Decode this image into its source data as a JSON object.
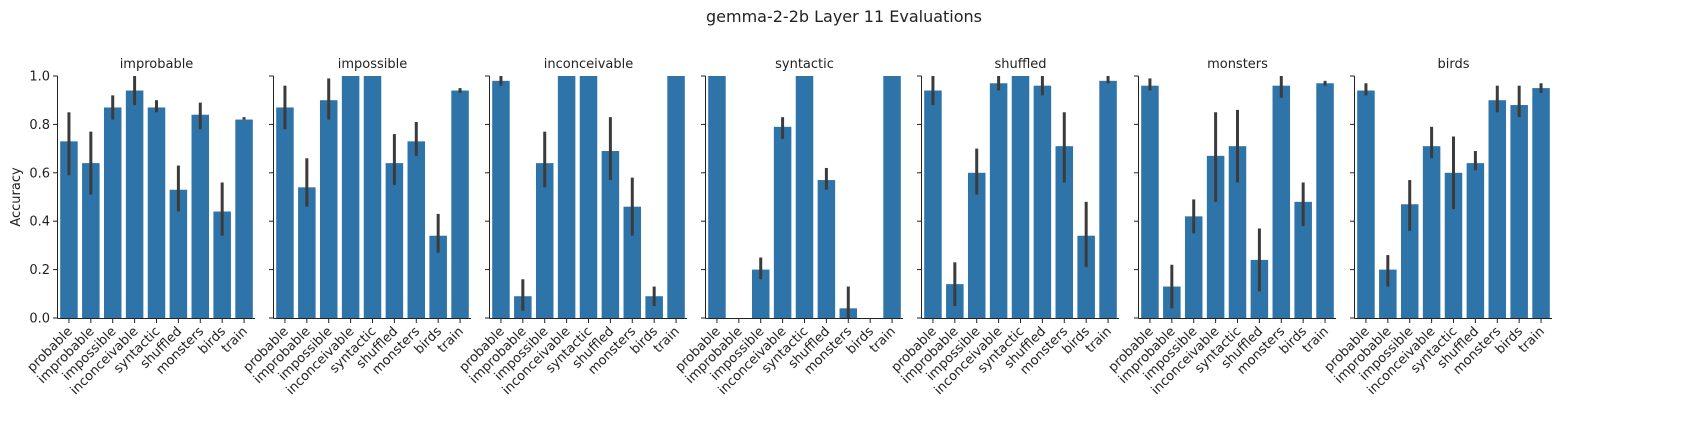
{
  "figure": {
    "title": "gemma-2-2b Layer 11 Evaluations",
    "bar_color": "#2f74a8",
    "error_bar_color": "#3b3b3b"
  },
  "chart_data": [
    {
      "type": "bar",
      "title": "improbable",
      "ylabel": "Accuracy",
      "ylim": [
        0,
        1
      ],
      "yticks": [
        "0.0",
        "0.2",
        "0.4",
        "0.6",
        "0.8",
        "1.0"
      ],
      "categories": [
        "probable",
        "improbable",
        "impossible",
        "inconceivable",
        "syntactic",
        "shuffled",
        "monsters",
        "birds",
        "train"
      ],
      "values": [
        0.73,
        0.64,
        0.87,
        0.94,
        0.87,
        0.53,
        0.84,
        0.44,
        0.82
      ],
      "error_low": [
        0.59,
        0.51,
        0.82,
        0.88,
        0.85,
        0.44,
        0.78,
        0.34,
        0.82
      ],
      "error_high": [
        0.85,
        0.77,
        0.92,
        1.0,
        0.9,
        0.63,
        0.89,
        0.56,
        0.83
      ],
      "grid": false
    },
    {
      "type": "bar",
      "title": "impossible",
      "ylim": [
        0,
        1
      ],
      "categories": [
        "probable",
        "improbable",
        "impossible",
        "inconceivable",
        "syntactic",
        "shuffled",
        "monsters",
        "birds",
        "train"
      ],
      "values": [
        0.87,
        0.54,
        0.9,
        1.0,
        1.0,
        0.64,
        0.73,
        0.34,
        0.94
      ],
      "error_low": [
        0.78,
        0.46,
        0.82,
        1.0,
        1.0,
        0.55,
        0.67,
        0.27,
        0.93
      ],
      "error_high": [
        0.96,
        0.66,
        0.99,
        1.0,
        1.0,
        0.76,
        0.81,
        0.43,
        0.95
      ],
      "grid": false
    },
    {
      "type": "bar",
      "title": "inconceivable",
      "ylim": [
        0,
        1
      ],
      "categories": [
        "probable",
        "improbable",
        "impossible",
        "inconceivable",
        "syntactic",
        "shuffled",
        "monsters",
        "birds",
        "train"
      ],
      "values": [
        0.98,
        0.09,
        0.64,
        1.0,
        1.0,
        0.69,
        0.46,
        0.09,
        1.0
      ],
      "error_low": [
        0.96,
        0.03,
        0.54,
        1.0,
        1.0,
        0.57,
        0.34,
        0.05,
        1.0
      ],
      "error_high": [
        1.0,
        0.16,
        0.77,
        1.0,
        1.0,
        0.83,
        0.58,
        0.13,
        1.0
      ],
      "grid": false
    },
    {
      "type": "bar",
      "title": "syntactic",
      "ylim": [
        0,
        1
      ],
      "categories": [
        "probable",
        "improbable",
        "impossible",
        "inconceivable",
        "syntactic",
        "shuffled",
        "monsters",
        "birds",
        "train"
      ],
      "values": [
        1.0,
        0.0,
        0.2,
        0.79,
        1.0,
        0.57,
        0.04,
        0.0,
        1.0
      ],
      "error_low": [
        1.0,
        0.0,
        0.16,
        0.74,
        1.0,
        0.53,
        0.0,
        0.0,
        1.0
      ],
      "error_high": [
        1.0,
        0.0,
        0.25,
        0.83,
        1.0,
        0.62,
        0.13,
        0.0,
        1.0
      ],
      "grid": false
    },
    {
      "type": "bar",
      "title": "shuffled",
      "ylim": [
        0,
        1
      ],
      "categories": [
        "probable",
        "improbable",
        "impossible",
        "inconceivable",
        "syntactic",
        "shuffled",
        "monsters",
        "birds",
        "train"
      ],
      "values": [
        0.94,
        0.14,
        0.6,
        0.97,
        1.0,
        0.96,
        0.71,
        0.34,
        0.98
      ],
      "error_low": [
        0.88,
        0.05,
        0.51,
        0.94,
        1.0,
        0.92,
        0.56,
        0.21,
        0.97
      ],
      "error_high": [
        1.0,
        0.23,
        0.7,
        1.0,
        1.0,
        1.0,
        0.85,
        0.48,
        1.0
      ],
      "grid": false
    },
    {
      "type": "bar",
      "title": "monsters",
      "ylim": [
        0,
        1
      ],
      "categories": [
        "probable",
        "improbable",
        "impossible",
        "inconceivable",
        "syntactic",
        "shuffled",
        "monsters",
        "birds",
        "train"
      ],
      "values": [
        0.96,
        0.13,
        0.42,
        0.67,
        0.71,
        0.24,
        0.96,
        0.48,
        0.97
      ],
      "error_low": [
        0.94,
        0.04,
        0.35,
        0.48,
        0.56,
        0.11,
        0.91,
        0.38,
        0.96
      ],
      "error_high": [
        0.99,
        0.22,
        0.49,
        0.85,
        0.86,
        0.37,
        1.0,
        0.56,
        0.98
      ],
      "grid": false
    },
    {
      "type": "bar",
      "title": "birds",
      "ylim": [
        0,
        1
      ],
      "categories": [
        "probable",
        "improbable",
        "impossible",
        "inconceivable",
        "syntactic",
        "shuffled",
        "monsters",
        "birds",
        "train"
      ],
      "values": [
        0.94,
        0.2,
        0.47,
        0.71,
        0.6,
        0.64,
        0.9,
        0.88,
        0.95
      ],
      "error_low": [
        0.92,
        0.13,
        0.36,
        0.66,
        0.45,
        0.61,
        0.85,
        0.83,
        0.93
      ],
      "error_high": [
        0.97,
        0.26,
        0.57,
        0.79,
        0.75,
        0.69,
        0.96,
        0.96,
        0.97
      ],
      "grid": false
    }
  ]
}
